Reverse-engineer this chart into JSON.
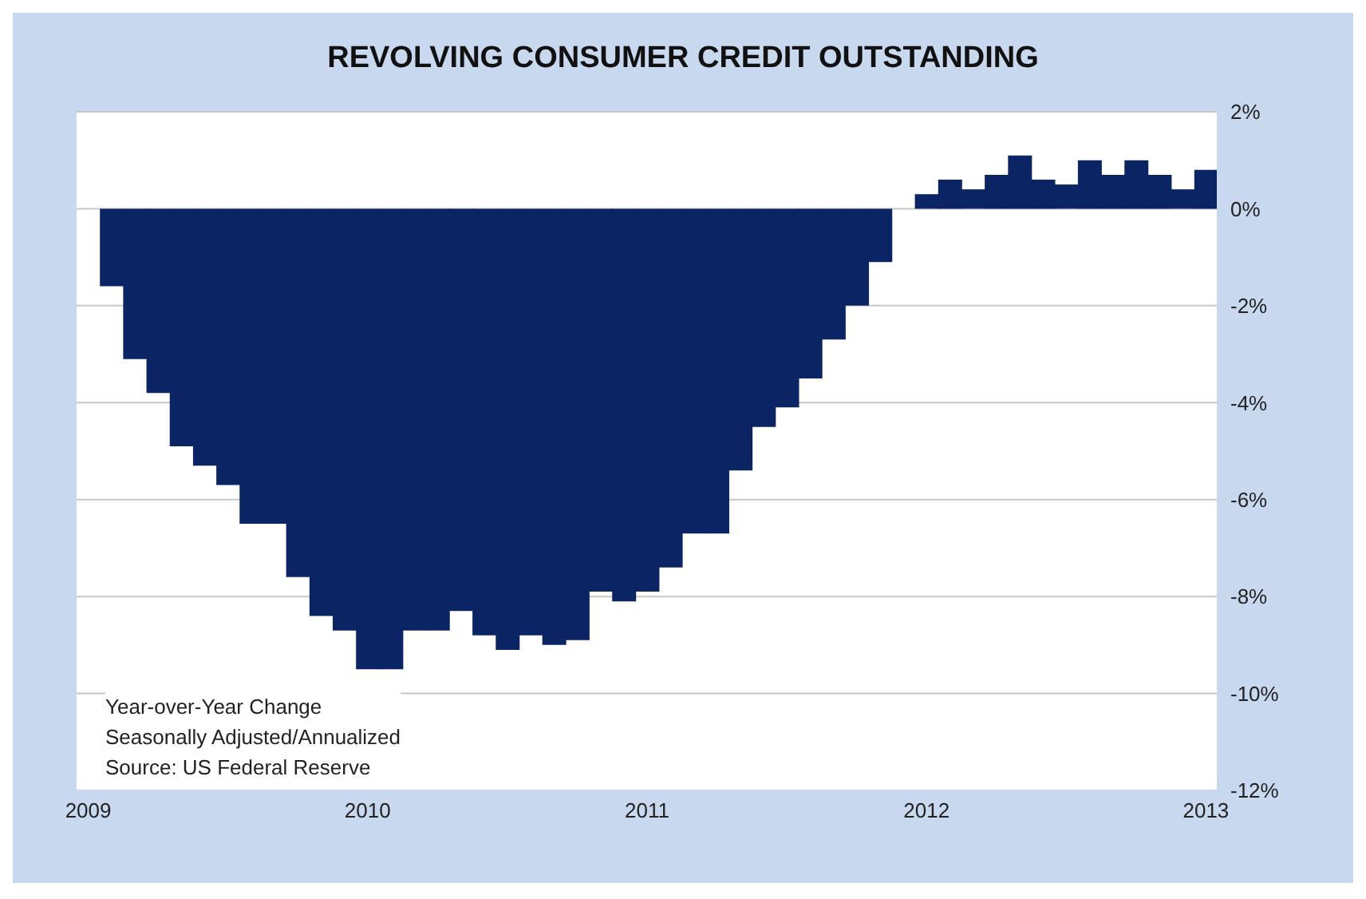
{
  "chart_data": {
    "type": "bar",
    "title": "REVOLVING CONSUMER CREDIT OUTSTANDING",
    "categories": [
      "2009",
      null,
      null,
      null,
      null,
      null,
      null,
      null,
      null,
      null,
      null,
      null,
      "2010",
      null,
      null,
      null,
      null,
      null,
      null,
      null,
      null,
      null,
      null,
      null,
      "2011",
      null,
      null,
      null,
      null,
      null,
      null,
      null,
      null,
      null,
      null,
      null,
      "2012",
      null,
      null,
      null,
      null,
      null,
      null,
      null,
      null,
      null,
      null,
      null,
      "2013"
    ],
    "series": [
      {
        "color": "#0b2463",
        "values": [
          0,
          -1.6,
          -3.1,
          -3.8,
          -4.9,
          -5.3,
          -5.7,
          -6.5,
          -6.5,
          -7.6,
          -8.4,
          -8.7,
          -9.5,
          -9.5,
          -8.7,
          -8.7,
          -8.3,
          -8.8,
          -9.1,
          -8.8,
          -9.0,
          -8.9,
          -7.9,
          -8.1,
          -7.9,
          -7.4,
          -6.7,
          -6.7,
          -5.4,
          -4.5,
          -4.1,
          -3.5,
          -2.7,
          -2.0,
          -1.1,
          0,
          0.3,
          0.6,
          0.4,
          0.7,
          1.1,
          0.6,
          0.5,
          1.0,
          0.7,
          1.0,
          0.7,
          0.4,
          0.8
        ]
      }
    ],
    "ylim": [
      -12,
      2
    ],
    "yticks": [
      {
        "value": 2,
        "label": "2%"
      },
      {
        "value": 0,
        "label": "0%"
      },
      {
        "value": -2,
        "label": "-2%"
      },
      {
        "value": -4,
        "label": "-4%"
      },
      {
        "value": -6,
        "label": "-6%"
      },
      {
        "value": -8,
        "label": "-8%"
      },
      {
        "value": -10,
        "label": "-10%"
      },
      {
        "value": -12,
        "label": "-12%"
      }
    ],
    "grid": "y",
    "annotations": [
      "Year-over-Year Change",
      "Seasonally Adjusted/Annualized",
      "Source: US Federal Reserve"
    ]
  }
}
